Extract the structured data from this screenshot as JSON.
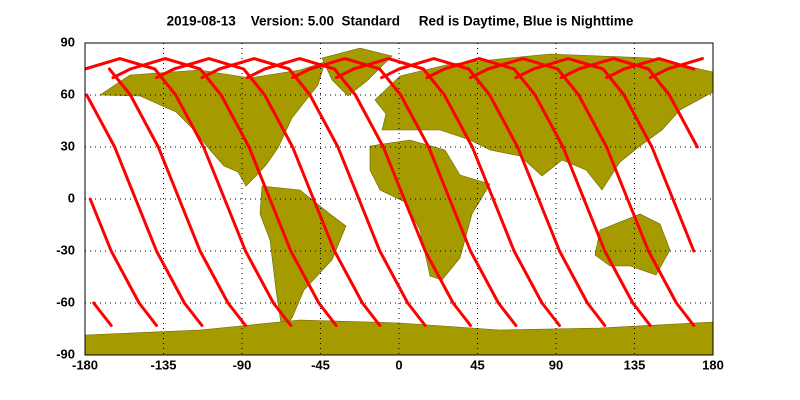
{
  "chart_data": {
    "type": "line",
    "title": "2019-08-13    Version: 5.00  Standard     Red is Daytime, Blue is Nighttime",
    "xlim": [
      -180,
      180
    ],
    "ylim": [
      -90,
      90
    ],
    "xticks": [
      -180,
      -135,
      -90,
      -45,
      0,
      45,
      90,
      135,
      180
    ],
    "yticks": [
      -90,
      -60,
      -30,
      0,
      30,
      60,
      90
    ],
    "grid": true,
    "series": [
      {
        "color": "#ff0000",
        "x": [
          -87,
          -77,
          -57,
          -37,
          -25,
          -9,
          3,
          15,
          31,
          41
        ],
        "values": [
          70,
          75,
          81,
          75,
          60,
          30,
          0,
          -30,
          -60,
          -73
        ]
      },
      {
        "color": "#ff0000",
        "x": [
          -61,
          -51,
          -31,
          -11,
          1,
          17,
          29,
          41,
          57,
          67
        ],
        "values": [
          70,
          75,
          81,
          75,
          60,
          30,
          0,
          -30,
          -60,
          -73
        ]
      },
      {
        "color": "#ff0000",
        "x": [
          -36,
          -26,
          -6,
          14,
          26,
          42,
          54,
          66,
          82,
          92
        ],
        "values": [
          70,
          75,
          81,
          75,
          60,
          30,
          0,
          -30,
          -60,
          -73
        ]
      },
      {
        "color": "#ff0000",
        "x": [
          -10,
          0,
          20,
          40,
          52,
          68,
          80,
          92,
          108,
          118
        ],
        "values": [
          70,
          75,
          81,
          75,
          60,
          30,
          0,
          -30,
          -60,
          -73
        ]
      },
      {
        "color": "#ff0000",
        "x": [
          16,
          26,
          46,
          66,
          78,
          94,
          106,
          118,
          134,
          144
        ],
        "values": [
          70,
          75,
          81,
          75,
          60,
          30,
          0,
          -30,
          -60,
          -73
        ]
      },
      {
        "color": "#ff0000",
        "x": [
          41,
          51,
          71,
          91,
          103,
          119,
          131,
          143,
          159,
          169
        ],
        "values": [
          70,
          75,
          81,
          75,
          60,
          30,
          0,
          -30,
          -60,
          -73
        ]
      },
      {
        "color": "#ff0000",
        "x": [
          67,
          77,
          97,
          117,
          129,
          145,
          157,
          169,
          null,
          -175,
          -165
        ],
        "values": [
          70,
          75,
          81,
          75,
          60,
          30,
          0,
          -30,
          null,
          -60,
          -73
        ]
      },
      {
        "color": "#ff0000",
        "x": [
          93,
          103,
          123,
          143,
          155,
          171,
          null,
          -177,
          -165,
          -149,
          -139
        ],
        "values": [
          70,
          75,
          81,
          75,
          60,
          30,
          null,
          0,
          -30,
          -60,
          -73
        ]
      },
      {
        "color": "#ff0000",
        "x": [
          119,
          129,
          149,
          169,
          null,
          -179,
          -163,
          -151,
          -139,
          -123,
          -113
        ],
        "values": [
          70,
          75,
          81,
          75,
          null,
          60,
          30,
          0,
          -30,
          -60,
          -73
        ]
      },
      {
        "color": "#ff0000",
        "x": [
          144,
          154,
          174,
          null,
          -166,
          -154,
          -138,
          -126,
          -114,
          -98,
          -88
        ],
        "values": [
          70,
          75,
          81,
          null,
          75,
          60,
          30,
          0,
          -30,
          -60,
          -73
        ]
      },
      {
        "color": "#ff0000",
        "x": [
          170,
          null,
          -180,
          -160,
          -140,
          -128,
          -112,
          -100,
          -88,
          -72,
          -62
        ],
        "values": [
          70,
          null,
          75,
          81,
          75,
          60,
          30,
          0,
          -30,
          -60,
          -73
        ]
      },
      {
        "color": "#ff0000",
        "x": [
          -164,
          -154,
          -134,
          -114,
          -102,
          -86,
          -74,
          -62,
          -46,
          -36
        ],
        "values": [
          70,
          75,
          81,
          75,
          60,
          30,
          0,
          -30,
          -60,
          -73
        ]
      },
      {
        "color": "#ff0000",
        "x": [
          -139,
          -129,
          -109,
          -89,
          -77,
          -61,
          -49,
          -37,
          -21,
          -11
        ],
        "values": [
          70,
          75,
          81,
          75,
          60,
          30,
          0,
          -30,
          -60,
          -73
        ]
      },
      {
        "color": "#ff0000",
        "x": [
          -113,
          -103,
          -83,
          -63,
          -51,
          -35,
          -23,
          -11,
          5,
          15
        ],
        "values": [
          70,
          75,
          81,
          75,
          60,
          30,
          0,
          -30,
          -60,
          -73
        ]
      }
    ]
  }
}
